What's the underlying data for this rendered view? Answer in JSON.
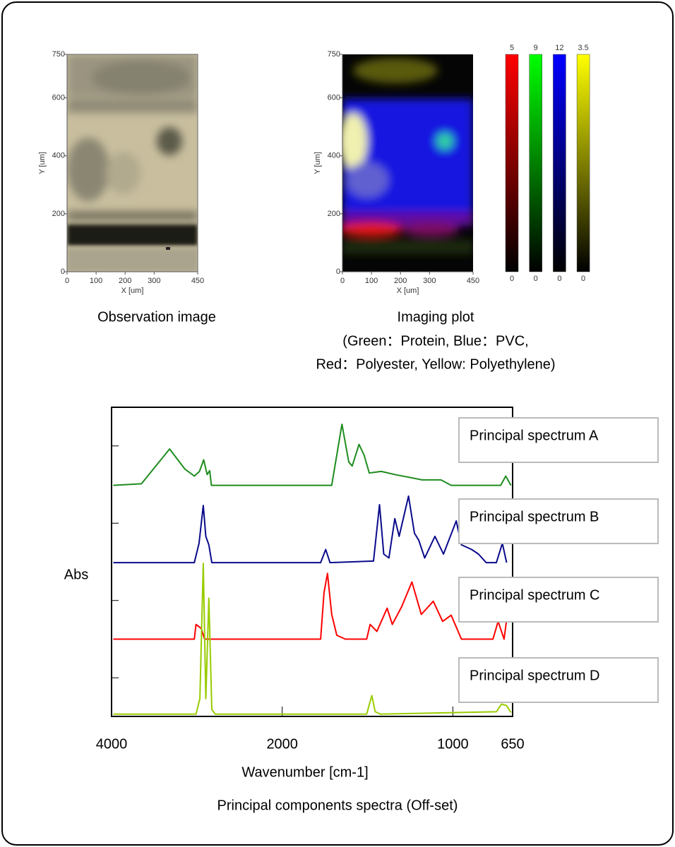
{
  "observation": {
    "caption": "Observation image",
    "xlabel": "X [um]",
    "ylabel": "Y [um]",
    "xlim": [
      0,
      450
    ],
    "ylim": [
      0,
      750
    ],
    "xticks": [
      0,
      100,
      200,
      300,
      450
    ],
    "yticks": [
      0,
      200,
      400,
      600,
      750
    ]
  },
  "imaging": {
    "caption_lines": [
      "Imaging plot",
      "(Green：Protein, Blue：PVC,",
      "Red：Polyester, Yellow: Polyethylene)"
    ],
    "xlabel": "X [um]",
    "ylabel": "Y [um]",
    "xlim": [
      0,
      450
    ],
    "ylim": [
      0,
      750
    ],
    "xticks": [
      0,
      100,
      200,
      300,
      450
    ],
    "yticks": [
      0,
      200,
      400,
      600,
      750
    ],
    "colorbars": [
      {
        "color": "#ff0000",
        "max": 5,
        "min": 0
      },
      {
        "color": "#00ff00",
        "max": 9,
        "min": 0
      },
      {
        "color": "#0000ff",
        "max": 12,
        "min": 0
      },
      {
        "color": "#ffff00",
        "max": 3.5,
        "min": 0
      }
    ]
  },
  "chart_data": {
    "type": "line",
    "caption": "Principal components spectra (Off-set)",
    "xlabel": "Wavenumber [cm-1]",
    "ylabel": "Abs",
    "xlim": [
      4000,
      650
    ],
    "xticks": [
      4000,
      2000,
      1000,
      650
    ],
    "x_axis_expanded_below": 2000,
    "ylim": [
      0,
      4
    ],
    "yticks": [
      0.5,
      1.5,
      2.5,
      3.5
    ],
    "series": [
      {
        "name": "Principal spectrum A",
        "color": "#1f8c1f",
        "x": [
          3980,
          3650,
          3320,
          3140,
          3030,
          2970,
          2920,
          2880,
          2850,
          2830,
          1710,
          1650,
          1610,
          1590,
          1550,
          1520,
          1490,
          1420,
          1340,
          1180,
          1070,
          1010,
          720,
          690,
          660
        ],
        "values": [
          2.99,
          3.01,
          3.46,
          3.2,
          3.11,
          3.17,
          3.32,
          3.13,
          3.18,
          2.99,
          2.99,
          3.78,
          3.29,
          3.24,
          3.52,
          3.38,
          3.15,
          3.17,
          3.13,
          3.06,
          3.06,
          2.99,
          2.99,
          3.11,
          2.99
        ]
      },
      {
        "name": "Principal spectrum B",
        "color": "#0a0a8c",
        "x": [
          3980,
          3030,
          2975,
          2925,
          2895,
          2860,
          2825,
          1775,
          1745,
          1720,
          1465,
          1430,
          1405,
          1375,
          1340,
          1315,
          1260,
          1225,
          1200,
          1165,
          1105,
          1055,
          980,
          950,
          890,
          850,
          805,
          745,
          710,
          685
        ],
        "values": [
          1.99,
          1.99,
          2.24,
          2.73,
          2.33,
          2.22,
          1.99,
          1.99,
          2.16,
          1.99,
          2.01,
          2.74,
          2.1,
          2.05,
          2.56,
          2.33,
          2.85,
          2.37,
          2.28,
          2.05,
          2.33,
          2.1,
          2.53,
          2.22,
          2.16,
          2.1,
          1.99,
          1.99,
          2.24,
          1.99
        ]
      },
      {
        "name": "Principal spectrum C",
        "color": "#ff0000",
        "x": [
          3980,
          3030,
          3010,
          2950,
          2910,
          1775,
          1755,
          1735,
          1710,
          1680,
          1630,
          1505,
          1485,
          1445,
          1385,
          1355,
          1300,
          1240,
          1185,
          1115,
          1060,
          1010,
          950,
          765,
          735,
          700,
          675
        ],
        "values": [
          1.0,
          1.0,
          1.19,
          1.14,
          1.0,
          1.0,
          1.6,
          1.85,
          1.32,
          1.05,
          1.0,
          1.0,
          1.19,
          1.1,
          1.4,
          1.19,
          1.42,
          1.74,
          1.32,
          1.49,
          1.23,
          1.31,
          1.0,
          1.0,
          1.23,
          1.0,
          1.42
        ]
      },
      {
        "name": "Principal spectrum D",
        "color": "#99cc00",
        "x": [
          3980,
          3010,
          2965,
          2925,
          2895,
          2860,
          2825,
          2785,
          1505,
          1475,
          1455,
          1425,
          745,
          715,
          685,
          660
        ],
        "values": [
          0.03,
          0.03,
          0.23,
          1.98,
          0.23,
          1.53,
          0.09,
          0.03,
          0.03,
          0.27,
          0.06,
          0.03,
          0.06,
          0.16,
          0.14,
          0.05
        ]
      }
    ]
  }
}
